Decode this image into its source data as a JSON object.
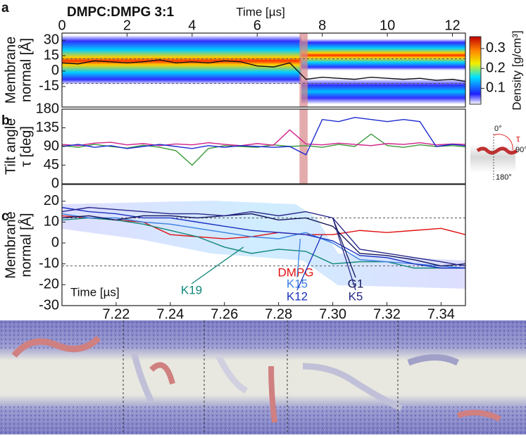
{
  "chart_data": [
    {
      "type": "line",
      "panel_letter": "a",
      "title": "DMPC:DMPG 3:1",
      "xlabel": "Time [µs]",
      "ylabel": [
        "Membrane",
        "normal [Å]"
      ],
      "xlim": [
        0,
        12.4
      ],
      "xticks": [
        0,
        2,
        4,
        6,
        8,
        10,
        12
      ],
      "ylim": [
        -35,
        37
      ],
      "yticks": [
        30,
        15,
        0,
        -15
      ],
      "hlines": [
        12,
        -12
      ],
      "highlight": [
        7.3,
        7.55
      ],
      "highlight_color": "#d9888a",
      "colorbar": {
        "label": "Density [g/cm³]",
        "lim": [
          0.02,
          0.36
        ],
        "ticks": [
          0.1,
          0.2,
          0.3
        ]
      },
      "x": [
        0,
        0.5,
        1,
        1.5,
        2,
        2.5,
        3,
        3.5,
        4,
        4.5,
        5,
        5.5,
        6,
        6.5,
        7,
        7.5,
        8,
        8.5,
        9,
        9.5,
        10,
        10.5,
        11,
        11.5,
        12,
        12.4
      ],
      "series": [
        {
          "color": "#111111",
          "values": [
            8,
            7,
            10,
            9,
            8,
            9,
            11,
            8,
            9,
            8,
            10,
            9,
            5,
            4,
            8,
            -8,
            -6,
            -7,
            -8,
            -6,
            -7,
            -8,
            -7,
            -9,
            -8,
            -10
          ]
        }
      ]
    },
    {
      "type": "line",
      "panel_letter": "b",
      "ylabel": [
        "Tilt angle",
        "τ [deg]"
      ],
      "xlim": [
        0,
        12.4
      ],
      "ylim": [
        0,
        180
      ],
      "yticks": [
        0,
        45,
        90,
        135,
        180
      ],
      "highlight": [
        7.3,
        7.55
      ],
      "highlight_color": "#d9888a",
      "inset_labels": [
        "0°",
        "90°",
        "180°",
        "τ"
      ],
      "x": [
        0,
        0.5,
        1,
        1.5,
        2,
        2.5,
        3,
        3.5,
        4,
        4.5,
        5,
        5.5,
        6,
        6.5,
        7,
        7.5,
        8,
        8.5,
        9,
        9.5,
        10,
        10.5,
        11,
        11.5,
        12,
        12.4
      ],
      "series": [
        {
          "color": "#3a9a3a",
          "values": [
            92,
            88,
            95,
            90,
            86,
            93,
            88,
            80,
            45,
            85,
            92,
            90,
            88,
            94,
            90,
            92,
            88,
            95,
            90,
            120,
            92,
            88,
            94,
            90,
            92,
            89
          ]
        },
        {
          "color": "#d0208a",
          "values": [
            95,
            92,
            98,
            100,
            94,
            97,
            92,
            96,
            94,
            99,
            95,
            92,
            97,
            93,
            130,
            96,
            94,
            98,
            95,
            92,
            97,
            95,
            99,
            94,
            96,
            95
          ]
        },
        {
          "color": "#1a2ad0",
          "values": [
            90,
            95,
            88,
            92,
            85,
            90,
            95,
            90,
            85,
            92,
            88,
            92,
            90,
            88,
            90,
            70,
            155,
            150,
            160,
            155,
            150,
            155,
            150,
            90,
            95,
            92
          ]
        }
      ]
    },
    {
      "type": "line",
      "panel_letter": "c",
      "xlabel": "Time [µs]",
      "ylabel": [
        "Membrane",
        "normal [Å]"
      ],
      "xlim": [
        7.2,
        7.349
      ],
      "xticks": [
        7.22,
        7.24,
        7.26,
        7.28,
        {
          "value": 7.3,
          "label": "7.30"
        },
        7.32,
        7.34
      ],
      "ylim": [
        -30,
        28
      ],
      "yticks": [
        -30,
        -20,
        -10,
        0,
        10,
        20
      ],
      "hlines": [
        12,
        -11
      ],
      "x": [
        7.2,
        7.21,
        7.22,
        7.23,
        7.24,
        7.25,
        7.26,
        7.27,
        7.28,
        7.29,
        7.3,
        7.31,
        7.32,
        7.33,
        7.34,
        7.349
      ],
      "series": [
        {
          "name": "DMPG",
          "color": "#e01010",
          "values": [
            13,
            12,
            11,
            10,
            4,
            3,
            2,
            3,
            5,
            4,
            4,
            6,
            5,
            6,
            7,
            4
          ]
        },
        {
          "name": "K19",
          "color": "#108878",
          "values": [
            11,
            12,
            11,
            9,
            6,
            3,
            -2,
            -5,
            -3,
            -4,
            -10,
            -9,
            -9,
            -12,
            -12,
            -12
          ]
        },
        {
          "name": "K15",
          "color": "#3a80e0",
          "values": [
            14,
            12,
            12,
            10,
            9,
            7,
            5,
            3,
            2,
            5,
            0,
            -8,
            -9,
            -10,
            -11,
            -12
          ]
        },
        {
          "name": "K12",
          "color": "#1a30c0",
          "values": [
            17,
            15,
            14,
            12,
            12,
            10,
            8,
            6,
            5,
            4,
            1,
            -6,
            -7,
            -10,
            -12,
            -12
          ]
        },
        {
          "name": "G1",
          "color": "#14145a",
          "values": [
            12,
            13,
            11,
            13,
            13,
            12,
            13,
            14,
            11,
            12,
            8,
            -5,
            -6,
            -8,
            -11,
            -10
          ]
        },
        {
          "name": "K5",
          "color": "#28288a",
          "values": [
            15,
            17,
            16,
            15,
            14,
            14,
            13,
            15,
            13,
            15,
            12,
            -3,
            -5,
            -7,
            -9,
            -11
          ]
        }
      ]
    }
  ]
}
